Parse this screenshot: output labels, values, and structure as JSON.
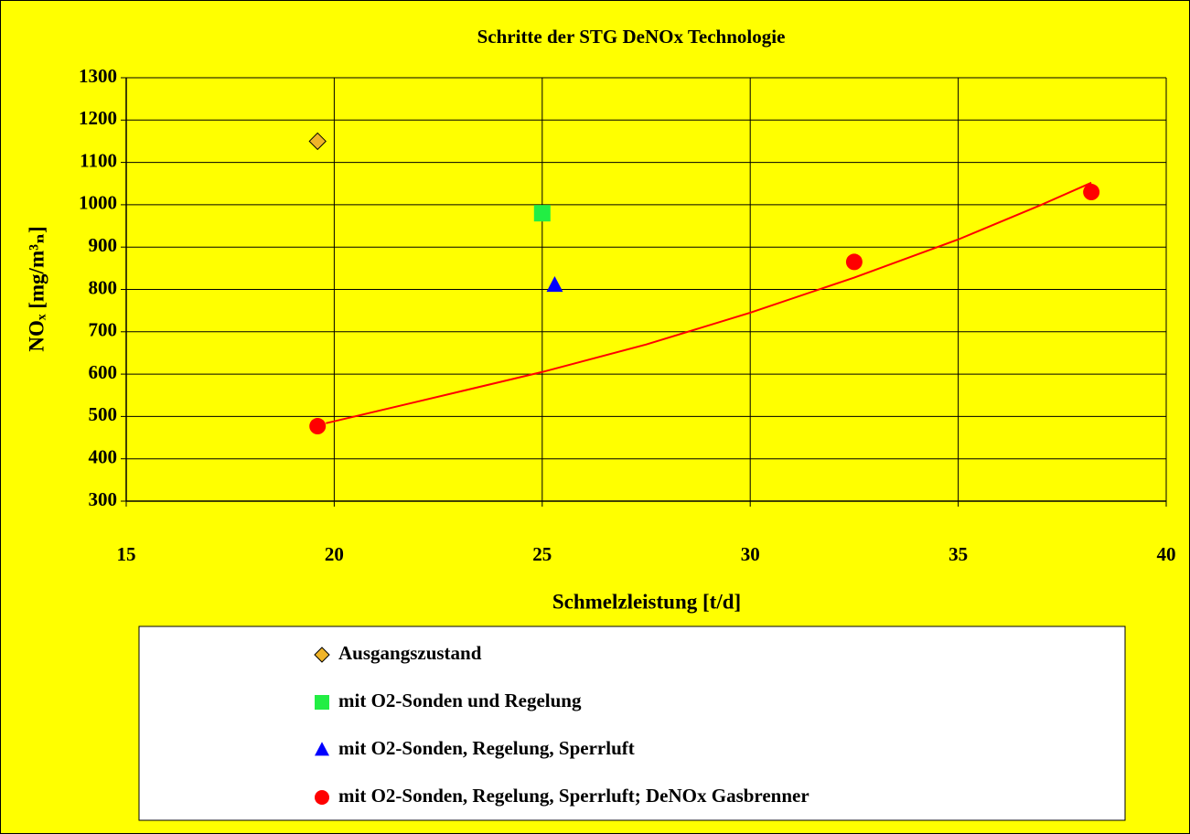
{
  "chart_data": {
    "type": "scatter",
    "title": "Schritte der STG DeNOx Technologie",
    "x_label": "Schmelzleistung [t/d]",
    "y_label": "NOₓ [mg/m³ₙ]",
    "xlim": [
      15,
      40
    ],
    "xticks": [
      15,
      20,
      25,
      30,
      35,
      40
    ],
    "ylim": [
      300,
      1300
    ],
    "yticks": [
      300,
      400,
      500,
      600,
      700,
      800,
      900,
      1000,
      1100,
      1200,
      1300
    ],
    "grid": true,
    "legend": "bottom",
    "series": [
      {
        "name": "Ausgangszustand",
        "color": "#f0b428",
        "marker": "diamond",
        "x": [
          19.6
        ],
        "values": [
          1150
        ]
      },
      {
        "name": "mit O2-Sonden und Regelung",
        "color": "#22ee44",
        "marker": "square",
        "x": [
          25
        ],
        "values": [
          980
        ]
      },
      {
        "name": "mit O2-Sonden, Regelung, Sperrluft",
        "color": "#0000ff",
        "marker": "triangle",
        "x": [
          25.3
        ],
        "values": [
          810
        ]
      },
      {
        "name": "mit O2-Sonden, Regelung, Sperrluft; DeNOx Gasbrenner",
        "color": "#ff0000",
        "marker": "circle",
        "x": [
          19.6,
          32.5,
          38.2
        ],
        "values": [
          477,
          865,
          1030
        ]
      }
    ],
    "trendline": {
      "color": "#ff0000",
      "x": [
        19.8,
        22,
        25,
        27.5,
        30,
        32.5,
        35,
        37,
        38.2
      ],
      "values": [
        484,
        535,
        605,
        670,
        745,
        828,
        918,
        1000,
        1052
      ]
    }
  }
}
